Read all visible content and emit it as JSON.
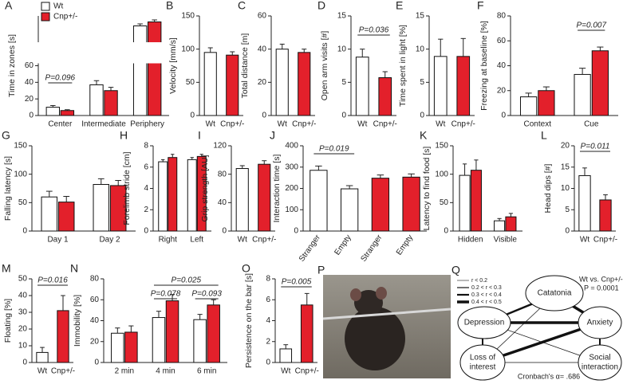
{
  "chart_data": [
    {
      "type": "bar",
      "panel": "A",
      "ylabel": "Time in zones [s]",
      "categories": [
        "Center",
        "Intermediate",
        "Periphery"
      ],
      "series": [
        {
          "name": "Wt",
          "color": "#ffffff",
          "values": [
            10,
            37,
            375
          ],
          "errors": [
            2,
            5,
            5
          ]
        },
        {
          "name": "Cnp+/-",
          "color": "#e3202b",
          "values": [
            6,
            30,
            385
          ],
          "errors": [
            1,
            4,
            5
          ]
        }
      ],
      "ylim": [
        0,
        400
      ],
      "ybreak": [
        60,
        340
      ],
      "yticks": [
        0,
        20,
        40,
        60
      ],
      "annotations": [
        "P=0.096"
      ]
    },
    {
      "type": "bar",
      "panel": "B",
      "ylabel": "Velocity [mm/s]",
      "categories": [
        "Wt",
        "Cnp+/-"
      ],
      "values": [
        95,
        91
      ],
      "errors": [
        7,
        5
      ],
      "colors": [
        "#ffffff",
        "#e3202b"
      ],
      "ylim": [
        0,
        150
      ],
      "yticks": [
        0,
        50,
        100,
        150
      ]
    },
    {
      "type": "bar",
      "panel": "C",
      "ylabel": "Total distance [m]",
      "categories": [
        "Wt",
        "Cnp+/-"
      ],
      "values": [
        40,
        38
      ],
      "errors": [
        3,
        2
      ],
      "colors": [
        "#ffffff",
        "#e3202b"
      ],
      "ylim": [
        0,
        60
      ],
      "yticks": [
        0,
        20,
        40,
        60
      ]
    },
    {
      "type": "bar",
      "panel": "D",
      "ylabel": "Open arm visits [#]",
      "categories": [
        "Wt",
        "Cnp+/-"
      ],
      "values": [
        8.8,
        5.7
      ],
      "errors": [
        1.2,
        0.9
      ],
      "colors": [
        "#ffffff",
        "#e3202b"
      ],
      "ylim": [
        0,
        15
      ],
      "yticks": [
        0,
        5,
        10,
        15
      ],
      "annotations": [
        "P=0.036"
      ]
    },
    {
      "type": "bar",
      "panel": "E",
      "ylabel": "Time spent in light [%]",
      "categories": [
        "Wt",
        "Cnp+/-"
      ],
      "values": [
        8.9,
        8.9
      ],
      "errors": [
        2.6,
        2.7
      ],
      "colors": [
        "#ffffff",
        "#e3202b"
      ],
      "ylim": [
        0,
        15
      ],
      "yticks": [
        0,
        5,
        10,
        15
      ]
    },
    {
      "type": "bar",
      "panel": "F",
      "ylabel": "Freezing at baseline [%]",
      "categories": [
        "Context",
        "Cue"
      ],
      "series": [
        {
          "name": "Wt",
          "color": "#ffffff",
          "values": [
            15,
            33
          ],
          "errors": [
            3,
            5
          ]
        },
        {
          "name": "Cnp+/-",
          "color": "#e3202b",
          "values": [
            20,
            52
          ],
          "errors": [
            3,
            3
          ]
        }
      ],
      "ylim": [
        0,
        80
      ],
      "yticks": [
        0,
        20,
        40,
        60,
        80
      ],
      "annotations": [
        "P=0.007"
      ]
    },
    {
      "type": "bar",
      "panel": "G",
      "ylabel": "Falling latency [s]",
      "categories": [
        "Day 1",
        "Day 2"
      ],
      "series": [
        {
          "name": "Wt",
          "color": "#ffffff",
          "values": [
            60,
            82
          ],
          "errors": [
            10,
            10
          ]
        },
        {
          "name": "Cnp+/-",
          "color": "#e3202b",
          "values": [
            51,
            80
          ],
          "errors": [
            10,
            9
          ]
        }
      ],
      "ylim": [
        0,
        150
      ],
      "yticks": [
        0,
        50,
        100,
        150
      ]
    },
    {
      "type": "bar",
      "panel": "H",
      "ylabel": "Forelimb stride [cm]",
      "categories": [
        "Right",
        "Left"
      ],
      "series": [
        {
          "name": "Wt",
          "color": "#ffffff",
          "values": [
            6.5,
            6.7
          ],
          "errors": [
            0.2,
            0.2
          ]
        },
        {
          "name": "Cnp+/-",
          "color": "#e3202b",
          "values": [
            6.9,
            7.0
          ],
          "errors": [
            0.3,
            0.2
          ]
        }
      ],
      "ylim": [
        0,
        8
      ],
      "yticks": [
        0,
        2,
        4,
        6,
        8
      ]
    },
    {
      "type": "bar",
      "panel": "I",
      "ylabel": "Grip strength [AU]",
      "categories": [
        "Wt",
        "Cnp+/-"
      ],
      "values": [
        88,
        94
      ],
      "errors": [
        4,
        5
      ],
      "colors": [
        "#ffffff",
        "#e3202b"
      ],
      "ylim": [
        0,
        120
      ],
      "yticks": [
        0,
        40,
        80,
        120
      ]
    },
    {
      "type": "bar",
      "panel": "J",
      "ylabel": "Interaction time [s]",
      "categories": [
        "Stranger",
        "Empty",
        "Stranger",
        "Empty"
      ],
      "values": [
        285,
        198,
        248,
        253
      ],
      "errors": [
        20,
        15,
        15,
        15
      ],
      "colors": [
        "#ffffff",
        "#ffffff",
        "#e3202b",
        "#e3202b"
      ],
      "ylim": [
        0,
        400
      ],
      "yticks": [
        0,
        100,
        200,
        300,
        400
      ],
      "annotations": [
        "P=0.019"
      ]
    },
    {
      "type": "bar",
      "panel": "K",
      "ylabel": "Latency to find food [s]",
      "categories": [
        "Hidden",
        "Visible"
      ],
      "series": [
        {
          "name": "Wt",
          "color": "#ffffff",
          "values": [
            98,
            18
          ],
          "errors": [
            20,
            4
          ]
        },
        {
          "name": "Cnp+/-",
          "color": "#e3202b",
          "values": [
            107,
            25
          ],
          "errors": [
            18,
            6
          ]
        }
      ],
      "ylim": [
        0,
        150
      ],
      "yticks": [
        0,
        50,
        100,
        150
      ]
    },
    {
      "type": "bar",
      "panel": "L",
      "ylabel": "Head dips [#]",
      "categories": [
        "Wt",
        "Cnp+/-"
      ],
      "values": [
        13,
        7.3
      ],
      "errors": [
        1.8,
        1.2
      ],
      "colors": [
        "#ffffff",
        "#e3202b"
      ],
      "ylim": [
        0,
        20
      ],
      "yticks": [
        0,
        5,
        10,
        15,
        20
      ],
      "annotations": [
        "P=0.011"
      ]
    },
    {
      "type": "bar",
      "panel": "M",
      "ylabel": "Floating [%]",
      "categories": [
        "Wt",
        "Cnp+/-"
      ],
      "values": [
        6,
        31
      ],
      "errors": [
        3,
        9
      ],
      "colors": [
        "#ffffff",
        "#e3202b"
      ],
      "ylim": [
        0,
        50
      ],
      "yticks": [
        0,
        10,
        20,
        30,
        40,
        50
      ],
      "annotations": [
        "P=0.016"
      ]
    },
    {
      "type": "bar",
      "panel": "N",
      "ylabel": "Immobility [%]",
      "categories": [
        "2 min",
        "4 min",
        "6 min"
      ],
      "series": [
        {
          "name": "Wt",
          "color": "#ffffff",
          "values": [
            28,
            43,
            41
          ],
          "errors": [
            5,
            6,
            5
          ]
        },
        {
          "name": "Cnp+/-",
          "color": "#e3202b",
          "values": [
            29,
            59,
            55
          ],
          "errors": [
            6,
            6,
            5
          ]
        }
      ],
      "ylim": [
        0,
        80
      ],
      "yticks": [
        0,
        20,
        40,
        60,
        80
      ],
      "annotations": [
        "P=0.078",
        "P=0.093",
        "P=0.025"
      ]
    },
    {
      "type": "bar",
      "panel": "O",
      "ylabel": "Persistence on the bar [s]",
      "categories": [
        "Wt",
        "Cnp+/-"
      ],
      "values": [
        1.3,
        5.5
      ],
      "errors": [
        0.4,
        1.1
      ],
      "colors": [
        "#ffffff",
        "#e3202b"
      ],
      "ylim": [
        0,
        8
      ],
      "yticks": [
        0,
        2,
        4,
        6,
        8
      ],
      "annotations": [
        "P=0.005"
      ]
    }
  ],
  "photo": {
    "panel": "P"
  },
  "diagram": {
    "panel": "Q",
    "title": "Wt vs. Cnp+/-",
    "p_value": "P = 0.0001",
    "reliability": "Cronbach's α= .686",
    "legend": [
      "r < 0.2",
      "0.2 < r < 0.3",
      "0.3 < r < 0.4",
      "0.4 < r < 0.5"
    ],
    "nodes": [
      [
        "Catatonia"
      ],
      [
        "Depression"
      ],
      [
        "Anxiety"
      ],
      [
        "Loss of",
        "interest"
      ],
      [
        "Social",
        "interaction"
      ]
    ]
  }
}
